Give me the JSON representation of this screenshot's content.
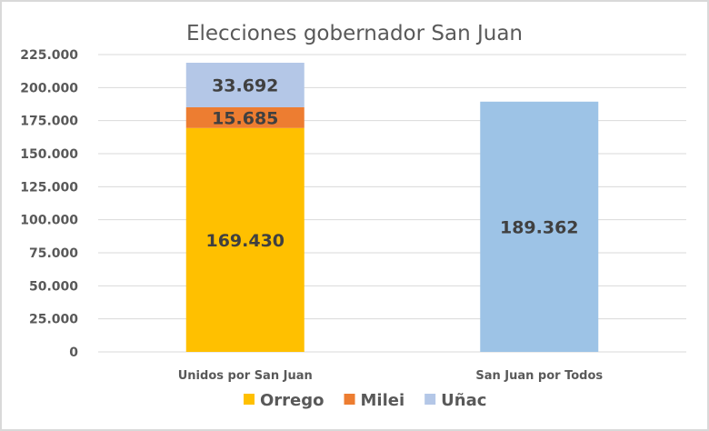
{
  "chart_data": {
    "type": "bar",
    "stacked": true,
    "title": "Elecciones gobernador San Juan",
    "categories": [
      "Unidos por San Juan",
      "San Juan por Todos"
    ],
    "series": [
      {
        "name": "Orrego",
        "values": [
          169430,
          null
        ],
        "labels": [
          "169.430",
          ""
        ],
        "color": "#FFC000"
      },
      {
        "name": "Milei",
        "values": [
          15685,
          null
        ],
        "labels": [
          "15.685",
          ""
        ],
        "color": "#ED7D31"
      },
      {
        "name": "Uñac",
        "values": [
          33692,
          null
        ],
        "labels": [
          "33.692",
          ""
        ],
        "color": "#B4C7E7"
      },
      {
        "values": [
          null,
          189362
        ],
        "labels": [
          "",
          "189.362"
        ],
        "color": "#9DC3E6"
      }
    ],
    "yticks": [
      "0",
      "25.000",
      "50.000",
      "75.000",
      "100.000",
      "125.000",
      "150.000",
      "175.000",
      "200.000",
      "225.000"
    ],
    "ylim": [
      0,
      225000
    ],
    "ystep": 25000,
    "grid": true,
    "legend": "bottom",
    "xlabel": "",
    "ylabel": ""
  }
}
